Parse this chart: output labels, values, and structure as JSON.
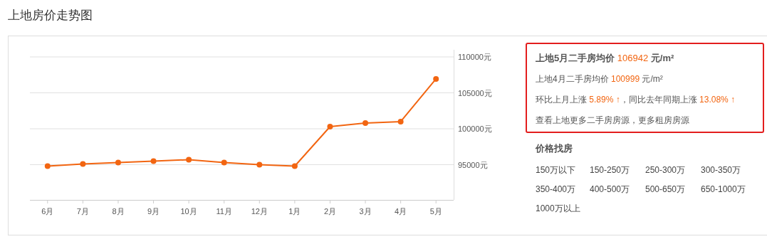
{
  "chart_data": [
    {
      "type": "line",
      "title": "上地房价走势图",
      "categories": [
        "6月",
        "7月",
        "8月",
        "9月",
        "10月",
        "11月",
        "12月",
        "1月",
        "2月",
        "3月",
        "4月",
        "5月"
      ],
      "series": [
        {
          "color": "#f26511",
          "values": [
            94800,
            95100,
            95300,
            95500,
            95700,
            95300,
            95000,
            94800,
            100300,
            100800,
            100999,
            106942
          ]
        }
      ],
      "ylim": [
        90100,
        110000
      ],
      "yticks": [
        {
          "value": 95000,
          "label": "95000元"
        },
        {
          "value": 100000,
          "label": "100000元"
        },
        {
          "value": 105000,
          "label": "105000元"
        },
        {
          "value": 110000,
          "label": "110000元"
        }
      ],
      "grid": "y",
      "marker": "circle"
    },
    {
      "type": "other",
      "annotations": [
        "上地5月二手房均价 106942 元/m²",
        "上地4月二手房均价 100999 元/m²",
        "环比上月上涨 5.89% ↑，同比去年同期上涨 13.08% ↑",
        "查看上地更多二手房房源，更多租房房源"
      ]
    },
    {
      "type": "other",
      "title": "价格找房",
      "annotations": [
        "150万以下",
        "150-250万",
        "250-300万",
        "300-350万",
        "350-400万",
        "400-500万",
        "500-650万",
        "650-1000万",
        "1000万以上"
      ]
    }
  ]
}
